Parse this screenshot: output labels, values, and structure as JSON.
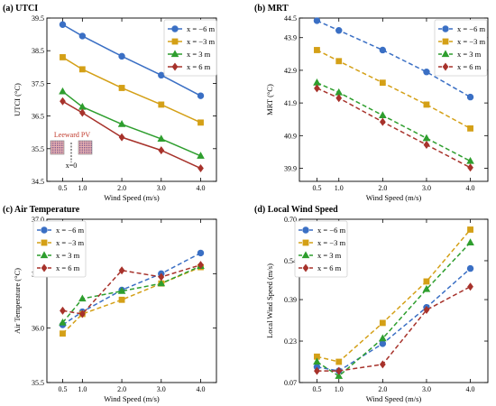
{
  "chart_data": [
    {
      "panel": "(a) UTCI",
      "type": "line",
      "ylabel": "UTCI (°C)",
      "xlabel": "Wind Speed (m/s)",
      "x": [
        0.5,
        1.0,
        2.0,
        3.0,
        4.0
      ],
      "xticks": [
        "0.5",
        "1.0",
        "2.0",
        "3.0",
        "4.0"
      ],
      "xlim": [
        0.1,
        4.4
      ],
      "ylim": [
        34.5,
        39.5
      ],
      "yticks": [
        "34.5",
        "35.5",
        "36.5",
        "37.5",
        "38.5",
        "39.5"
      ],
      "dashed": false,
      "series": [
        {
          "name": "x = −6 m",
          "values": [
            39.3,
            38.95,
            38.33,
            37.75,
            37.12
          ]
        },
        {
          "name": "x = −3 m",
          "values": [
            38.3,
            37.93,
            37.36,
            36.85,
            36.3
          ]
        },
        {
          "name": "x = 3 m",
          "values": [
            37.25,
            36.78,
            36.25,
            35.8,
            35.28
          ]
        },
        {
          "name": "x = 6 m",
          "values": [
            36.95,
            36.6,
            35.85,
            35.45,
            34.9
          ]
        }
      ],
      "annotation": {
        "label": "Leeward PV",
        "sublabel": "x=0"
      }
    },
    {
      "panel": "(b) MRT",
      "type": "line",
      "ylabel": "MRT (°C)",
      "xlabel": "Wind Speed (m/s)",
      "x": [
        0.5,
        1.0,
        2.0,
        3.0,
        4.0
      ],
      "xticks": [
        "0.5",
        "1.0",
        "2.0",
        "3.0",
        "4.0"
      ],
      "xlim": [
        0.1,
        4.4
      ],
      "ylim": [
        39.5,
        44.5
      ],
      "yticks": [
        "39.9",
        "40.9",
        "41.9",
        "42.9",
        "43.9",
        "44.5"
      ],
      "dashed": true,
      "series": [
        {
          "name": "x = −6 m",
          "values": [
            44.42,
            44.12,
            43.52,
            42.85,
            42.08
          ]
        },
        {
          "name": "x = −3 m",
          "values": [
            43.52,
            43.18,
            42.52,
            41.85,
            41.12
          ]
        },
        {
          "name": "x = 3 m",
          "values": [
            42.52,
            42.22,
            41.52,
            40.82,
            40.12
          ]
        },
        {
          "name": "x = 6 m",
          "values": [
            42.35,
            42.05,
            41.32,
            40.62,
            39.92
          ]
        }
      ]
    },
    {
      "panel": "(c) Air Temperature",
      "type": "line",
      "ylabel": "Air Temperature (°C)",
      "xlabel": "Wind Speed (m/s)",
      "x": [
        0.5,
        1.0,
        2.0,
        3.0,
        4.0
      ],
      "xticks": [
        "0.5",
        "1.0",
        "2.0",
        "3.0",
        "4.0"
      ],
      "xlim": [
        0.1,
        4.4
      ],
      "ylim": [
        35.5,
        37.0
      ],
      "yticks": [
        "35.5",
        "36.0",
        "36.5",
        "37.0"
      ],
      "dashed": true,
      "series": [
        {
          "name": "x = −6 m",
          "values": [
            36.03,
            36.15,
            36.35,
            36.5,
            36.69
          ]
        },
        {
          "name": "x = −3 m",
          "values": [
            35.95,
            36.13,
            36.26,
            36.41,
            36.56
          ]
        },
        {
          "name": "x = 3 m",
          "values": [
            36.05,
            36.27,
            36.34,
            36.41,
            36.57
          ]
        },
        {
          "name": "x = 6 m",
          "values": [
            36.16,
            36.13,
            36.53,
            36.47,
            36.58
          ]
        }
      ]
    },
    {
      "panel": "(d) Local Wind Speed",
      "type": "line",
      "ylabel": "Local Wind Speed (m/s)",
      "xlabel": "Wind Speed (m/s)",
      "x": [
        0.5,
        1.0,
        2.0,
        3.0,
        4.0
      ],
      "xticks": [
        "0.5",
        "1.0",
        "2.0",
        "3.0",
        "4.0"
      ],
      "xlim": [
        0.1,
        4.4
      ],
      "ylim": [
        0.07,
        0.7
      ],
      "yticks": [
        "0.07",
        "0.23",
        "0.39",
        "0.54",
        "0.70"
      ],
      "dashed": true,
      "series": [
        {
          "name": "x = −6 m",
          "values": [
            0.13,
            0.115,
            0.22,
            0.36,
            0.51
          ]
        },
        {
          "name": "x = −3 m",
          "values": [
            0.17,
            0.15,
            0.3,
            0.46,
            0.66
          ]
        },
        {
          "name": "x = 3 m",
          "values": [
            0.15,
            0.095,
            0.24,
            0.43,
            0.61
          ]
        },
        {
          "name": "x = 6 m",
          "values": [
            0.115,
            0.115,
            0.14,
            0.35,
            0.44
          ]
        }
      ]
    }
  ],
  "colors": [
    "#3a6fc4",
    "#d4a017",
    "#2e9e2e",
    "#a7322b"
  ],
  "markers": [
    "circle",
    "square",
    "triangle",
    "diamond"
  ]
}
